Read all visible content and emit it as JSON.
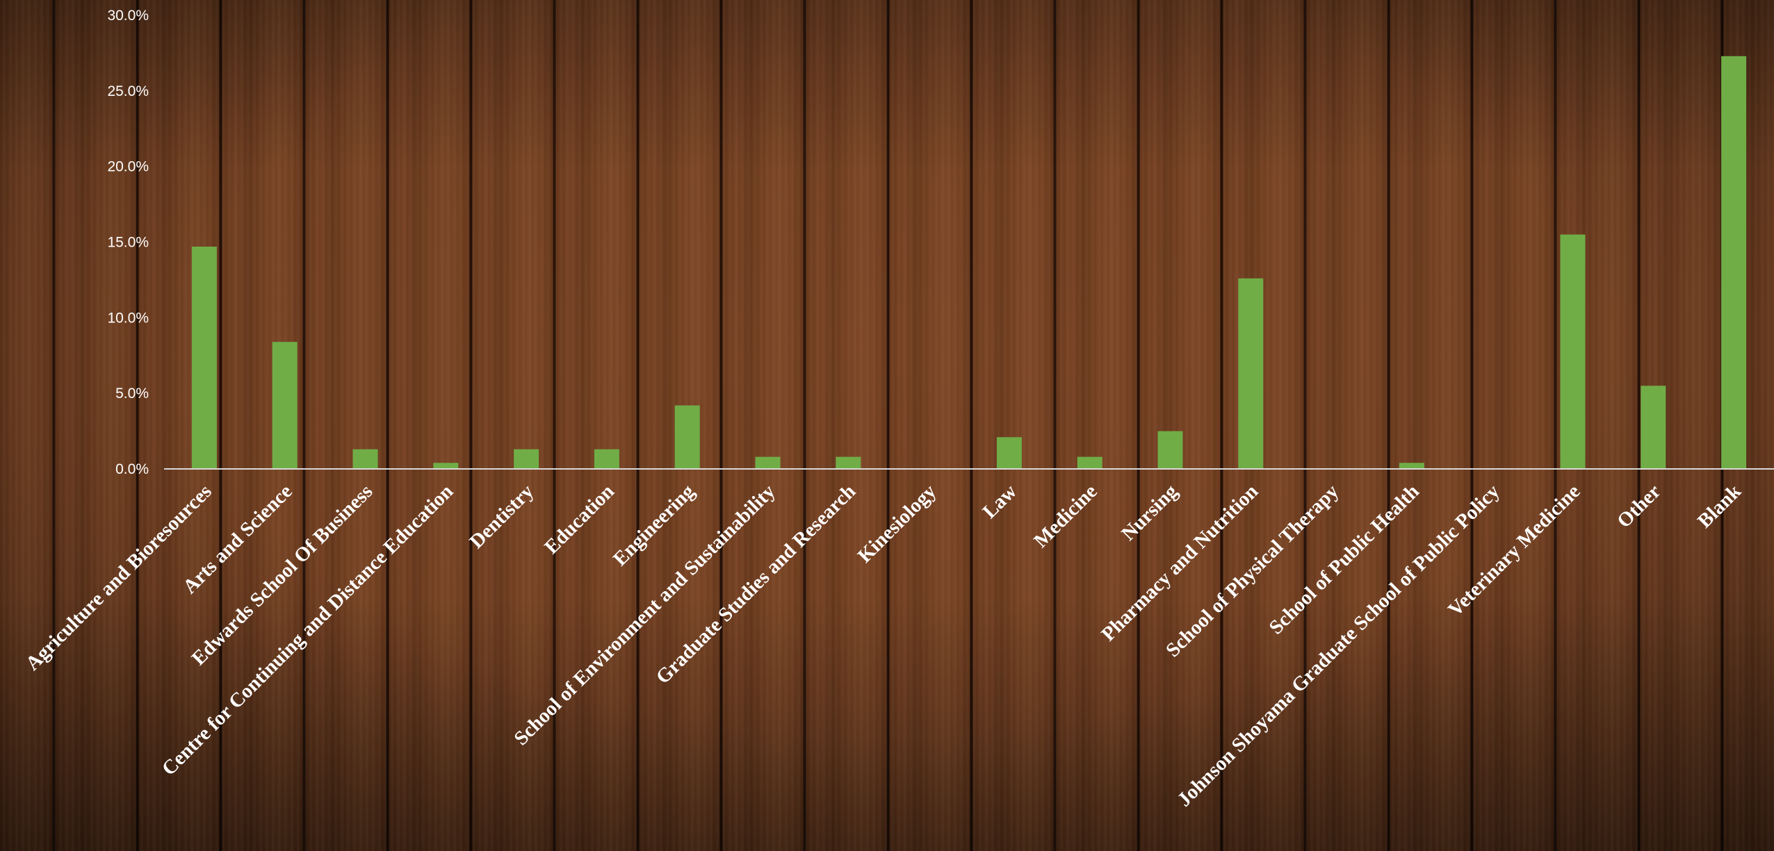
{
  "chart_data": {
    "type": "bar",
    "title": "",
    "xlabel": "",
    "ylabel": "",
    "ylim": [
      0,
      30
    ],
    "y_tick_values": [
      0,
      5,
      10,
      15,
      20,
      25,
      30
    ],
    "y_tick_labels": [
      "0.0%",
      "5.0%",
      "10.0%",
      "15.0%",
      "20.0%",
      "25.0%",
      "30.0%"
    ],
    "grid": false,
    "legend": "none",
    "bar_color": "#70ad47",
    "axis_color": "#d9d9d9",
    "text_color": "#ffffff",
    "categories": [
      "Agriculture and Bioresources",
      "Arts and Science",
      "Edwards School Of Business",
      "Centre for Continuing and Distance Education",
      "Dentistry",
      "Education",
      "Engineering",
      "School of Environment and Sustainability",
      "Graduate Studies and Research",
      "Kinesiology",
      "Law",
      "Medicine",
      "Nursing",
      "Pharmacy and Nutrition",
      "School of Physical Therapy",
      "School of Public Health",
      "Johnson Shoyama Graduate School of Public Policy",
      "Veterinary Medicine",
      "Other",
      "Blank"
    ],
    "values": [
      14.7,
      8.4,
      1.3,
      0.4,
      1.3,
      1.3,
      4.2,
      0.8,
      0.8,
      0.0,
      2.1,
      0.8,
      2.5,
      12.6,
      0.0,
      0.4,
      0.0,
      15.5,
      5.5,
      27.3
    ]
  }
}
